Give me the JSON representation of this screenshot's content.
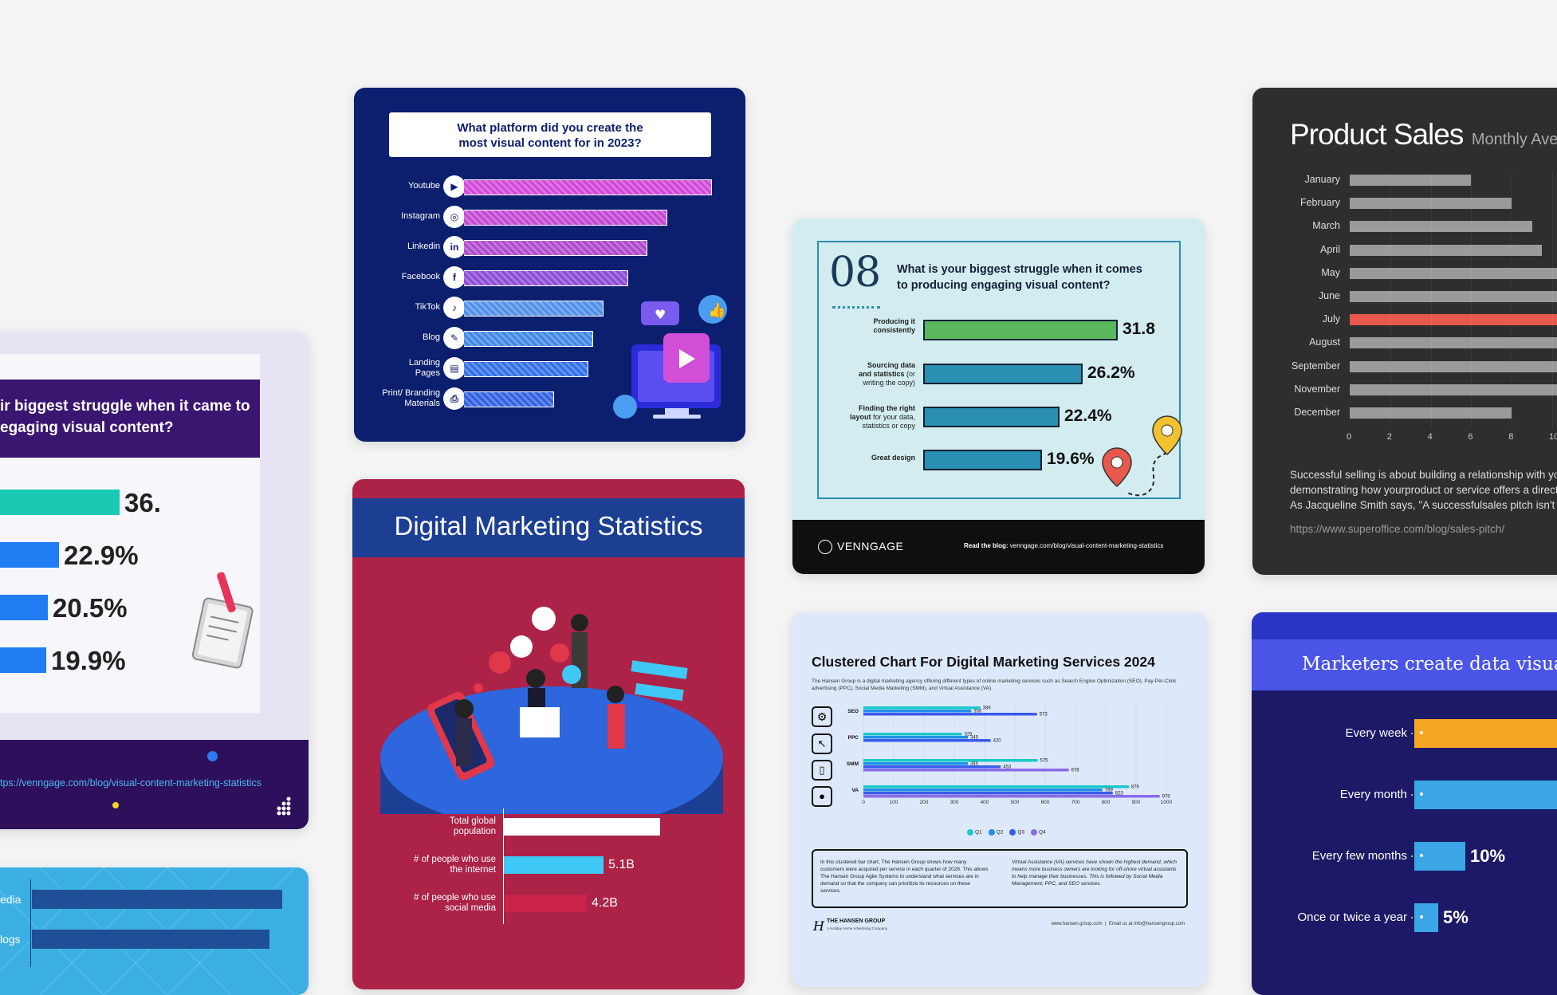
{
  "card_left": {
    "title": "ir biggest struggle when it came to\negaging visual content?",
    "values": [
      "36.",
      "22.9%",
      "20.5%",
      "19.9%"
    ],
    "link": "tps://venngage.com/blog/visual-content-marketing-statistics",
    "colors": {
      "header": "#3a1670",
      "teal": "#19c9b4",
      "blue": "#1f7cf2",
      "footer": "#2d0f5c"
    }
  },
  "card_left_bottom": {
    "labels": [
      "edia",
      "logs"
    ]
  },
  "card_platform": {
    "title": "What platform did you create the\nmost visual content for in 2023?",
    "rows": [
      {
        "label": "Youtube",
        "icon": "youtube-icon",
        "glyph": "▶"
      },
      {
        "label": "Instagram",
        "icon": "instagram-icon",
        "glyph": "◎"
      },
      {
        "label": "Linkedin",
        "icon": "linkedin-icon",
        "glyph": "in"
      },
      {
        "label": "Facebook",
        "icon": "facebook-icon",
        "glyph": "f"
      },
      {
        "label": "TikTok",
        "icon": "tiktok-icon",
        "glyph": "♪"
      },
      {
        "label": "Blog",
        "icon": "blog-icon",
        "glyph": "✎"
      },
      {
        "label": "Landing\nPages",
        "icon": "landing-pages-icon",
        "glyph": "▤"
      },
      {
        "label": "Print/ Branding\nMaterials",
        "icon": "print-icon",
        "glyph": "⎙"
      }
    ],
    "bar_fractions": [
      1.0,
      0.82,
      0.74,
      0.66,
      0.56,
      0.52,
      0.5,
      0.36
    ],
    "bar_colors": [
      "#d046d8",
      "#c246d2",
      "#b048cc",
      "#8b4ad6",
      "#4e8fe8",
      "#3f86e6",
      "#2f6ee6",
      "#2d5ee0"
    ],
    "colors": {
      "bg": "#0b1f6e"
    }
  },
  "card_digital": {
    "title": "Digital Marketing Statistics",
    "rows": [
      {
        "label": "Total global\npopulation",
        "value": ""
      },
      {
        "label": "# of people who use\nthe internet",
        "value": "5.1B"
      },
      {
        "label": "# of people who use\nsocial media",
        "value": "4.2B"
      }
    ],
    "bar_fractions": [
      1.0,
      0.64,
      0.53
    ],
    "bar_colors": [
      "#ffffff",
      "#3fc8f5",
      "#c9234a"
    ],
    "colors": {
      "top": "#ac2347",
      "band": "#1c3f93"
    }
  },
  "card_struggle": {
    "number": "08",
    "title": "What is your biggest struggle when it comes\nto producing engaging visual content?",
    "rows": [
      {
        "label_bold": "Producing it\nconsistently",
        "label_rest": "",
        "value": "31.8",
        "color": "#5bb85f"
      },
      {
        "label_bold": "Sourcing data\nand statistics",
        "label_rest": " (or\nwriting the copy)",
        "value": "26.2%",
        "color": "#2a8fb0"
      },
      {
        "label_bold": "Finding the right\nlayout",
        "label_rest": " for your data,\nstatistics or copy",
        "value": "22.4%",
        "color": "#2a8fb0"
      },
      {
        "label_bold": "Great design",
        "label_rest": "",
        "value": "19.6%",
        "color": "#2a8fb0"
      }
    ],
    "bar_fractions": [
      1.0,
      0.82,
      0.7,
      0.61
    ],
    "brand": "VENNGAGE",
    "footer_bold": "Read the blog:",
    "footer_link": "venngage.com/blog/visual-content-marketing-statistics",
    "colors": {
      "bg": "#d2ecef",
      "footer": "#0f0f0f"
    }
  },
  "card_clustered": {
    "title": "Clustered Chart For Digital Marketing Services 2024",
    "subtitle": "The Hansen Group is a digital marketing agency offering different types of online marketing services such as Search Engine Optimization (SEO), Pay-Per-Click advertising (PPC), Social Media Marketing (SMM), and Virtual Assistance (VA).",
    "note_left": "In this clustered bar chart, The Hansen Group shows how many customers were acquired per service in each quarter of 2028. This allows The Hansen Group Agile Systems to understand what services are in demand so that the company can prioritize its resources on these services.",
    "note_right": "Virtual Assistance (VA) services have shown the highest demand, which means more business owners are looking for off-shore virtual assistants to help manage their businesses. This is followed by Social Media Management, PPC, and SEO services.",
    "brand": "THE HANSEN GROUP",
    "brand_sub": "A Holiday Home Advertising Company",
    "contact": "www.hansen.group.com  |  Email us at info@hansengroup.com",
    "colors": {
      "bg": "#dde9fb"
    }
  },
  "card_sales": {
    "title": "Product Sales",
    "subtitle": "Monthly Averag",
    "months": [
      "January",
      "February",
      "March",
      "April",
      "May",
      "June",
      "July",
      "August",
      "September",
      "November",
      "December"
    ],
    "highlight_month": "July",
    "text": "Successful selling is about building a relationship with you\ndemonstrating how yourproduct or service offers a direct \nAs Jacqueline Smith says, \"A successfulsales pitch isn't a",
    "link": "https://www.superoffice.com/blog/sales-pitch/",
    "colors": {
      "bg": "#2e2e2e",
      "bar": "#9a9a9a",
      "highlight": "#e8584c"
    }
  },
  "card_marketers": {
    "title": "Marketers create data visualiz",
    "rows": [
      {
        "label": "Every week",
        "value": ""
      },
      {
        "label": "Every month",
        "value": ""
      },
      {
        "label": "Every few months",
        "value": "10%"
      },
      {
        "label": "Once or twice a year",
        "value": "5%"
      }
    ],
    "colors": {
      "bg": "#1c1a66",
      "header": "#4a55e8",
      "orange": "#f5a623",
      "blue": "#3aa6e6"
    }
  },
  "chart_data": [
    {
      "type": "bar",
      "categories": [
        "Youtube",
        "Instagram",
        "Linkedin",
        "Facebook",
        "TikTok",
        "Blog",
        "Landing Pages",
        "Print/ Branding Materials"
      ],
      "values": [
        1.0,
        0.82,
        0.74,
        0.66,
        0.56,
        0.52,
        0.5,
        0.36
      ],
      "title": "What platform did you create the most visual content for in 2023?"
    },
    {
      "type": "bar",
      "categories": [
        "Producing it consistently",
        "Sourcing data and statistics",
        "Finding the right layout",
        "Great design"
      ],
      "values": [
        31.8,
        26.2,
        22.4,
        19.6
      ],
      "title": "What is your biggest struggle when it comes to producing engaging visual content?"
    },
    {
      "type": "bar",
      "categories": [
        "SEO",
        "PPC",
        "SMM",
        "VA"
      ],
      "series": [
        {
          "name": "Q1",
          "values": [
            386,
            325,
            575,
            876
          ]
        },
        {
          "name": "Q2",
          "values": [
            356,
            345,
            345,
            789
          ]
        },
        {
          "name": "Q3",
          "values": [
            573,
            420,
            453,
            823
          ]
        },
        {
          "name": "Q4",
          "values": [
            0,
            0,
            678,
            978
          ]
        }
      ],
      "xlim": [
        0,
        1000
      ],
      "xticks": [
        0,
        100,
        200,
        300,
        400,
        500,
        600,
        700,
        800,
        900,
        1000
      ],
      "title": "Clustered Chart For Digital Marketing Services 2024"
    },
    {
      "type": "bar",
      "categories": [
        "January",
        "February",
        "March",
        "April",
        "May",
        "June",
        "July",
        "August",
        "September",
        "November",
        "December"
      ],
      "values": [
        6,
        8,
        9,
        9.5,
        11,
        11,
        11,
        11,
        11,
        11,
        8
      ],
      "xticks": [
        0,
        2,
        4,
        6,
        8,
        10
      ],
      "title": "Product Sales",
      "subtitle": "Monthly Averag"
    },
    {
      "type": "bar",
      "categories": [
        "Total global population",
        "# of people who use the internet",
        "# of people who use social media"
      ],
      "values": [
        8.0,
        5.1,
        4.2
      ],
      "value_labels": [
        "",
        "5.1B",
        "4.2B"
      ],
      "title": "Digital Marketing Statistics"
    }
  ]
}
